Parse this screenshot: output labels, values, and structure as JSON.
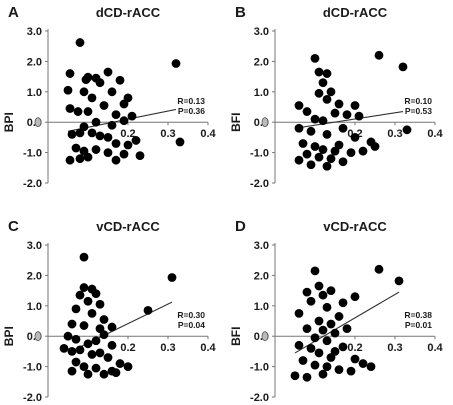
{
  "chart_data": [
    {
      "type": "scatter",
      "panel_letter": "A",
      "title": "dCD-rACC",
      "ylabel": "BPI",
      "xlabel": "",
      "xlim": [
        0,
        0.4
      ],
      "ylim": [
        -2.0,
        3.0
      ],
      "xticks": [
        "0.2",
        "0.3",
        "0.4"
      ],
      "yticks": [
        "3.0",
        "2.0",
        "1.0",
        "0.0",
        "-1.0",
        "-2.0"
      ],
      "stats": {
        "r": "R=0.13",
        "p": "P=0.36"
      },
      "trendline": {
        "x": [
          0.05,
          0.32
        ],
        "y": [
          -0.3,
          0.42
        ]
      },
      "points": [
        [
          0.08,
          2.62
        ],
        [
          0.055,
          1.6
        ],
        [
          0.05,
          1.05
        ],
        [
          0.09,
          1.0
        ],
        [
          0.095,
          1.4
        ],
        [
          0.1,
          1.48
        ],
        [
          0.12,
          1.45
        ],
        [
          0.15,
          1.65
        ],
        [
          0.18,
          1.38
        ],
        [
          0.13,
          1.3
        ],
        [
          0.16,
          1.0
        ],
        [
          0.2,
          0.8
        ],
        [
          0.11,
          0.8
        ],
        [
          0.19,
          0.6
        ],
        [
          0.055,
          0.45
        ],
        [
          0.075,
          0.35
        ],
        [
          0.1,
          0.35
        ],
        [
          0.14,
          0.55
        ],
        [
          0.17,
          0.25
        ],
        [
          0.21,
          0.2
        ],
        [
          0.12,
          0.0
        ],
        [
          0.09,
          -0.15
        ],
        [
          0.16,
          -0.1
        ],
        [
          0.19,
          0.05
        ],
        [
          0.06,
          -0.4
        ],
        [
          0.08,
          -0.35
        ],
        [
          0.11,
          -0.35
        ],
        [
          0.13,
          -0.45
        ],
        [
          0.15,
          -0.5
        ],
        [
          0.17,
          -0.7
        ],
        [
          0.2,
          -0.75
        ],
        [
          0.22,
          -0.6
        ],
        [
          0.07,
          -0.85
        ],
        [
          0.09,
          -0.95
        ],
        [
          0.12,
          -0.9
        ],
        [
          0.1,
          -1.15
        ],
        [
          0.08,
          -1.2
        ],
        [
          0.15,
          -1.0
        ],
        [
          0.19,
          -1.05
        ],
        [
          0.23,
          -1.1
        ],
        [
          0.17,
          -1.25
        ],
        [
          0.055,
          -1.25
        ],
        [
          0.32,
          1.93
        ],
        [
          0.33,
          -0.65
        ]
      ]
    },
    {
      "type": "scatter",
      "panel_letter": "B",
      "title": "dCD-rACC",
      "ylabel": "BFI",
      "xlabel": "",
      "xlim": [
        0,
        0.4
      ],
      "ylim": [
        -2.0,
        3.0
      ],
      "xticks": [
        "0.2",
        "0.3",
        "0.4"
      ],
      "yticks": [
        "3.0",
        "2.0",
        "1.0",
        "0.0",
        "-1.0",
        "-2.0"
      ],
      "stats": {
        "r": "R=0.10",
        "p": "P=0.53"
      },
      "trendline": {
        "x": [
          0.05,
          0.32
        ],
        "y": [
          -0.2,
          0.35
        ]
      },
      "points": [
        [
          0.1,
          2.1
        ],
        [
          0.26,
          2.2
        ],
        [
          0.32,
          1.82
        ],
        [
          0.11,
          1.65
        ],
        [
          0.13,
          1.6
        ],
        [
          0.12,
          1.3
        ],
        [
          0.14,
          1.0
        ],
        [
          0.11,
          0.95
        ],
        [
          0.13,
          0.75
        ],
        [
          0.16,
          0.6
        ],
        [
          0.2,
          0.55
        ],
        [
          0.06,
          0.55
        ],
        [
          0.08,
          0.35
        ],
        [
          0.15,
          0.3
        ],
        [
          0.18,
          0.25
        ],
        [
          0.21,
          0.2
        ],
        [
          0.1,
          0.1
        ],
        [
          0.12,
          0.05
        ],
        [
          0.06,
          -0.2
        ],
        [
          0.09,
          -0.3
        ],
        [
          0.13,
          -0.4
        ],
        [
          0.17,
          -0.2
        ],
        [
          0.2,
          -0.5
        ],
        [
          0.24,
          -0.65
        ],
        [
          0.33,
          -0.25
        ],
        [
          0.07,
          -0.7
        ],
        [
          0.1,
          -0.8
        ],
        [
          0.12,
          -0.9
        ],
        [
          0.15,
          -0.95
        ],
        [
          0.19,
          -1.0
        ],
        [
          0.08,
          -1.05
        ],
        [
          0.11,
          -1.15
        ],
        [
          0.14,
          -1.2
        ],
        [
          0.17,
          -1.3
        ],
        [
          0.06,
          -1.25
        ],
        [
          0.09,
          -1.4
        ],
        [
          0.22,
          -0.95
        ],
        [
          0.16,
          -0.75
        ],
        [
          0.25,
          -0.8
        ],
        [
          0.13,
          -1.45
        ]
      ]
    },
    {
      "type": "scatter",
      "panel_letter": "C",
      "title": "vCD-rACC",
      "ylabel": "BPI",
      "xlabel": "",
      "xlim": [
        0,
        0.4
      ],
      "ylim": [
        -2.0,
        3.0
      ],
      "xticks": [
        "0.2",
        "0.3",
        "0.4"
      ],
      "yticks": [
        "3.0",
        "2.0",
        "1.0",
        "0.0",
        "-1.0",
        "-2.0"
      ],
      "stats": {
        "r": "R=0.30",
        "p": "P=0.04"
      },
      "trendline": {
        "x": [
          0.05,
          0.31
        ],
        "y": [
          -0.55,
          1.12
        ]
      },
      "points": [
        [
          0.09,
          2.6
        ],
        [
          0.31,
          1.93
        ],
        [
          0.09,
          1.6
        ],
        [
          0.11,
          1.55
        ],
        [
          0.12,
          1.4
        ],
        [
          0.08,
          1.35
        ],
        [
          0.1,
          1.15
        ],
        [
          0.13,
          1.05
        ],
        [
          0.07,
          0.9
        ],
        [
          0.11,
          0.75
        ],
        [
          0.14,
          0.55
        ],
        [
          0.25,
          0.85
        ],
        [
          0.06,
          0.4
        ],
        [
          0.09,
          0.35
        ],
        [
          0.13,
          0.25
        ],
        [
          0.16,
          0.3
        ],
        [
          0.05,
          0.0
        ],
        [
          0.07,
          -0.1
        ],
        [
          0.1,
          -0.25
        ],
        [
          0.12,
          -0.15
        ],
        [
          0.14,
          0.05
        ],
        [
          0.16,
          -0.3
        ],
        [
          0.04,
          -0.4
        ],
        [
          0.06,
          -0.5
        ],
        [
          0.08,
          -0.45
        ],
        [
          0.11,
          -0.6
        ],
        [
          0.13,
          -0.55
        ],
        [
          0.15,
          -0.7
        ],
        [
          0.18,
          -0.9
        ],
        [
          0.07,
          -0.85
        ],
        [
          0.09,
          -1.0
        ],
        [
          0.12,
          -1.05
        ],
        [
          0.16,
          -1.15
        ],
        [
          0.06,
          -1.15
        ],
        [
          0.1,
          -1.25
        ],
        [
          0.14,
          -1.25
        ],
        [
          0.2,
          -1.0
        ],
        [
          0.17,
          -1.2
        ]
      ]
    },
    {
      "type": "scatter",
      "panel_letter": "D",
      "title": "vCD-rACC",
      "ylabel": "BFI",
      "xlabel": "",
      "xlim": [
        0,
        0.4
      ],
      "ylim": [
        -2.0,
        3.0
      ],
      "xticks": [
        "0.2",
        "0.3",
        "0.4"
      ],
      "yticks": [
        "3.0",
        "2.0",
        "1.0",
        "0.0",
        "-1.0",
        "-2.0"
      ],
      "stats": {
        "r": "R=0.38",
        "p": "P=0.01"
      },
      "trendline": {
        "x": [
          0.05,
          0.31
        ],
        "y": [
          -0.55,
          1.45
        ]
      },
      "points": [
        [
          0.26,
          2.2
        ],
        [
          0.31,
          1.82
        ],
        [
          0.1,
          2.15
        ],
        [
          0.11,
          1.65
        ],
        [
          0.08,
          1.45
        ],
        [
          0.12,
          1.35
        ],
        [
          0.14,
          1.5
        ],
        [
          0.17,
          1.1
        ],
        [
          0.2,
          1.3
        ],
        [
          0.09,
          1.15
        ],
        [
          0.13,
          0.95
        ],
        [
          0.06,
          0.75
        ],
        [
          0.16,
          0.65
        ],
        [
          0.11,
          0.5
        ],
        [
          0.14,
          0.4
        ],
        [
          0.08,
          0.25
        ],
        [
          0.12,
          0.2
        ],
        [
          0.15,
          0.1
        ],
        [
          0.18,
          0.25
        ],
        [
          0.1,
          -0.05
        ],
        [
          0.13,
          -0.15
        ],
        [
          0.06,
          -0.3
        ],
        [
          0.09,
          -0.4
        ],
        [
          0.11,
          -0.55
        ],
        [
          0.15,
          -0.5
        ],
        [
          0.17,
          -0.35
        ],
        [
          0.2,
          -0.75
        ],
        [
          0.07,
          -0.8
        ],
        [
          0.1,
          -0.95
        ],
        [
          0.13,
          -1.0
        ],
        [
          0.16,
          -1.1
        ],
        [
          0.19,
          -1.15
        ],
        [
          0.05,
          -1.3
        ],
        [
          0.08,
          -1.35
        ],
        [
          0.12,
          -1.25
        ],
        [
          0.22,
          -0.9
        ],
        [
          0.24,
          -1.0
        ],
        [
          0.14,
          -0.7
        ]
      ]
    }
  ]
}
